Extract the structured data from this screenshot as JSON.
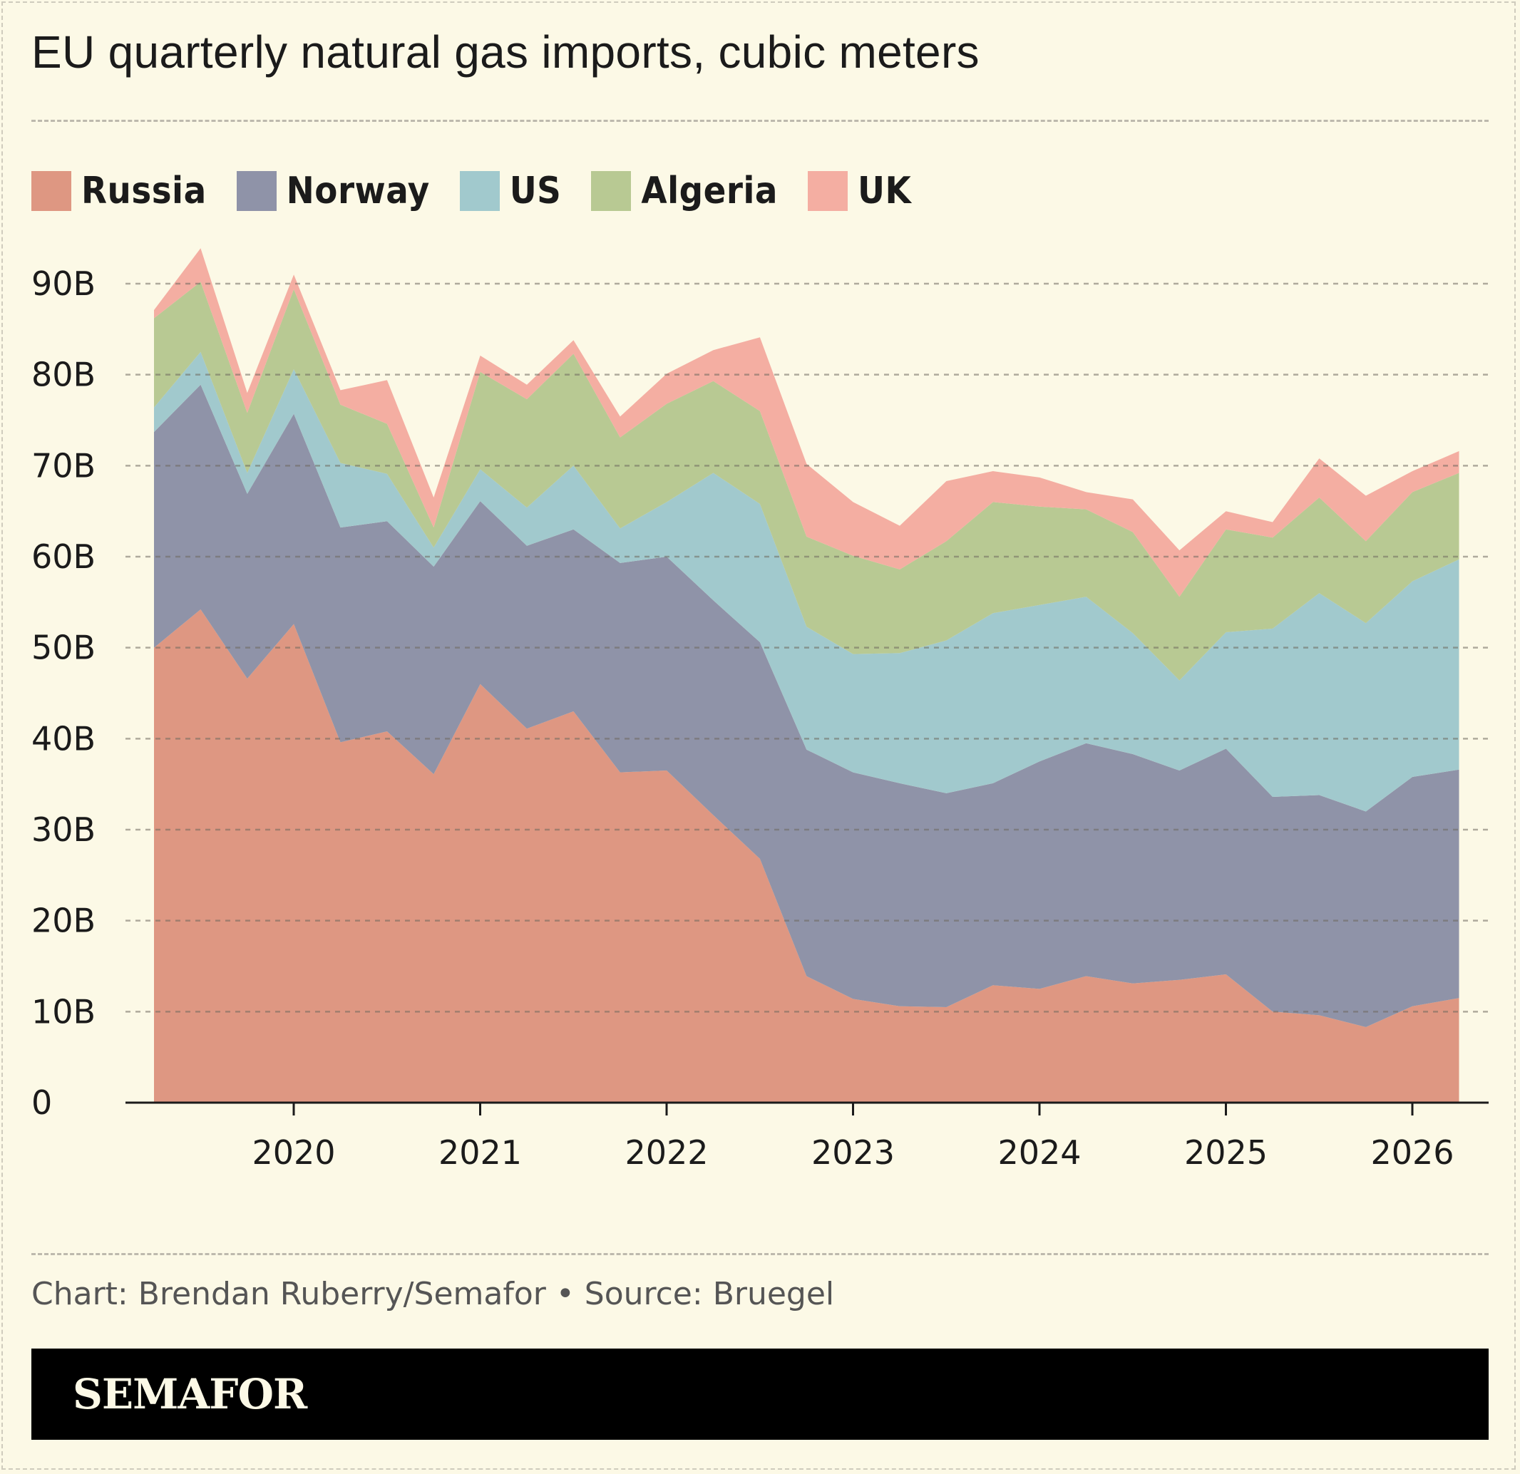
{
  "header": {
    "title": "EU quarterly natural gas imports, cubic meters"
  },
  "legend": [
    {
      "label": "Russia",
      "color": "#de9782"
    },
    {
      "label": "Norway",
      "color": "#8f93a8"
    },
    {
      "label": "US",
      "color": "#a1c9cd"
    },
    {
      "label": "Algeria",
      "color": "#b8c993"
    },
    {
      "label": "UK",
      "color": "#f4aea2"
    }
  ],
  "chart_data": {
    "type": "area",
    "stacked": true,
    "title": "EU quarterly natural gas imports, cubic meters",
    "xlabel": "",
    "ylabel": "",
    "ylim": [
      0,
      90
    ],
    "y_unit": "B cubic meters",
    "y_ticks": [
      {
        "value": 0,
        "label": "0"
      },
      {
        "value": 10,
        "label": "10B"
      },
      {
        "value": 20,
        "label": "20B"
      },
      {
        "value": 30,
        "label": "30B"
      },
      {
        "value": 40,
        "label": "40B"
      },
      {
        "value": 50,
        "label": "50B"
      },
      {
        "value": 60,
        "label": "60B"
      },
      {
        "value": 70,
        "label": "70B"
      },
      {
        "value": 80,
        "label": "80B"
      },
      {
        "value": 90,
        "label": "90B"
      }
    ],
    "x_ticks": [
      "2020",
      "2021",
      "2022",
      "2023",
      "2024",
      "2025",
      "2026"
    ],
    "x": [
      "2019-Q2",
      "2019-Q3",
      "2019-Q4",
      "2020-Q1",
      "2020-Q2",
      "2020-Q3",
      "2020-Q4",
      "2021-Q1",
      "2021-Q2",
      "2021-Q3",
      "2021-Q4",
      "2022-Q1",
      "2022-Q2",
      "2022-Q3",
      "2022-Q4",
      "2023-Q1",
      "2023-Q2",
      "2023-Q3",
      "2023-Q4",
      "2024-Q1",
      "2024-Q2",
      "2024-Q3",
      "2024-Q4",
      "2025-Q1",
      "2025-Q2",
      "2025-Q3",
      "2025-Q4",
      "2026-Q1",
      "2026-Q2"
    ],
    "grid": true,
    "legend_position": "top-left",
    "series": [
      {
        "name": "Russia",
        "color": "#de9782",
        "values": [
          50.0,
          54.2,
          46.6,
          52.6,
          39.6,
          40.8,
          36.1,
          46.0,
          41.1,
          43.0,
          36.3,
          36.5,
          31.6,
          26.8,
          13.9,
          11.4,
          10.6,
          10.5,
          12.9,
          12.5,
          13.9,
          13.1,
          13.5,
          14.1,
          10.0,
          9.6,
          8.3,
          10.6,
          11.5
        ]
      },
      {
        "name": "Norway",
        "color": "#8f93a8",
        "values": [
          23.7,
          24.7,
          20.3,
          23.1,
          23.6,
          23.1,
          22.8,
          20.1,
          20.1,
          20.0,
          23.0,
          23.5,
          23.6,
          23.8,
          24.9,
          24.9,
          24.5,
          23.5,
          22.2,
          25.0,
          25.6,
          25.2,
          23.0,
          24.8,
          23.6,
          24.2,
          23.7,
          25.2,
          25.1
        ]
      },
      {
        "name": "US",
        "color": "#a1c9cd",
        "values": [
          2.7,
          3.6,
          2.3,
          4.9,
          7.1,
          5.2,
          2.1,
          3.5,
          4.2,
          7.0,
          3.8,
          6.0,
          14.0,
          15.2,
          13.5,
          13.0,
          14.3,
          16.8,
          18.7,
          17.2,
          16.1,
          13.3,
          9.9,
          12.8,
          18.5,
          22.2,
          20.7,
          21.5,
          23.1
        ]
      },
      {
        "name": "Algeria",
        "color": "#b8c993",
        "values": [
          9.8,
          7.7,
          6.6,
          8.8,
          6.4,
          5.5,
          2.2,
          10.7,
          11.9,
          12.3,
          10.0,
          10.8,
          10.1,
          10.2,
          9.9,
          10.8,
          9.2,
          10.9,
          12.2,
          10.8,
          9.6,
          11.1,
          9.2,
          11.3,
          10.0,
          10.5,
          9.0,
          9.8,
          9.5
        ]
      },
      {
        "name": "UK",
        "color": "#f4aea2",
        "values": [
          0.9,
          3.7,
          2.2,
          1.6,
          1.6,
          4.8,
          3.3,
          1.8,
          1.6,
          1.5,
          2.3,
          3.3,
          3.4,
          8.1,
          8.0,
          5.9,
          4.8,
          6.6,
          3.4,
          3.2,
          1.9,
          3.6,
          5.1,
          2.0,
          1.7,
          4.3,
          5.0,
          2.3,
          2.4
        ]
      }
    ]
  },
  "footer": {
    "credit": "Chart: Brendan Ruberry/Semafor • Source: Bruegel",
    "logo": "SEMAFOR"
  }
}
